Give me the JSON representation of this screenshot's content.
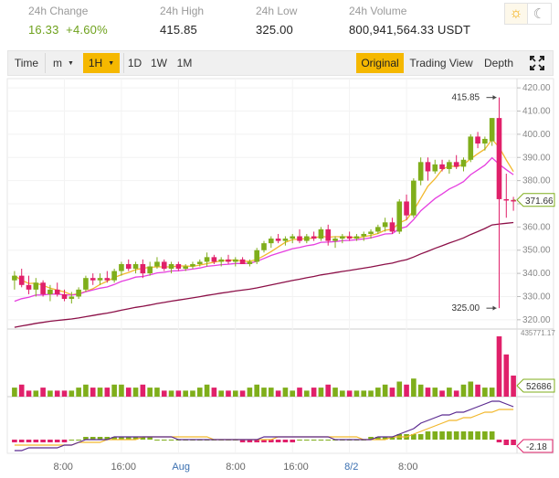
{
  "stats": [
    {
      "label": "24h Change",
      "values": [
        "16.33",
        "+4.60%"
      ],
      "color": "#6ea11c"
    },
    {
      "label": "24h High",
      "values": [
        "415.85"
      ]
    },
    {
      "label": "24h Low",
      "values": [
        "325.00"
      ]
    },
    {
      "label": "24h Volume",
      "values": [
        "800,941,564.33 USDT"
      ]
    }
  ],
  "theme": {
    "light_icon": "sun-icon",
    "dark_icon": "moon-icon"
  },
  "toolbar": {
    "time_label": "Time",
    "minute_label": "m",
    "hour_label": "1H",
    "day_label": "1D",
    "week_label": "1W",
    "month_label": "1M",
    "original_label": "Original",
    "tradingview_label": "Trading View",
    "depth_label": "Depth",
    "fullscreen_icon": "fullscreen-icon",
    "active_interval": "1H",
    "active_view": "Original",
    "accent": "#f5b800"
  },
  "chart_data": {
    "type": "candlestick",
    "interval": "1H",
    "x_tick_labels": [
      "8:00",
      "16:00",
      "Aug",
      "8:00",
      "16:00",
      "8/2",
      "8:00"
    ],
    "price_axis": {
      "ticks": [
        420,
        410,
        400,
        390,
        380,
        370,
        360,
        350,
        340,
        330,
        320
      ],
      "ylim": [
        316,
        424
      ],
      "tick_labels": [
        "420.00",
        "410.00",
        "400.00",
        "390.00",
        "380.00",
        "370.00",
        "360.00",
        "350.00",
        "340.00",
        "330.00",
        "320.00"
      ]
    },
    "last_price_label": "371.66",
    "high_marker": "415.85",
    "low_marker": "325.00",
    "volume_max_label": "435771.17",
    "volume_last_label": "52686",
    "indicator_last_label": "-2.18",
    "colors": {
      "up": "#7fae1b",
      "down": "#e0206a",
      "ma_fast": "#f2b82c",
      "ma_mid": "#e63fe0",
      "ma_slow": "#8c1048",
      "osc_line1": "#5b2a90",
      "osc_line2": "#f2b82c"
    },
    "candles": [
      {
        "o": 337,
        "h": 341,
        "l": 333,
        "c": 339
      },
      {
        "o": 339,
        "h": 342,
        "l": 334,
        "c": 335
      },
      {
        "o": 335,
        "h": 339,
        "l": 331,
        "c": 333
      },
      {
        "o": 333,
        "h": 338,
        "l": 330,
        "c": 336
      },
      {
        "o": 336,
        "h": 337,
        "l": 330,
        "c": 331
      },
      {
        "o": 331,
        "h": 335,
        "l": 328,
        "c": 333
      },
      {
        "o": 333,
        "h": 336,
        "l": 330,
        "c": 331
      },
      {
        "o": 331,
        "h": 333,
        "l": 328,
        "c": 329
      },
      {
        "o": 329,
        "h": 332,
        "l": 327,
        "c": 330
      },
      {
        "o": 330,
        "h": 334,
        "l": 329,
        "c": 333
      },
      {
        "o": 333,
        "h": 339,
        "l": 332,
        "c": 338
      },
      {
        "o": 338,
        "h": 340,
        "l": 335,
        "c": 337
      },
      {
        "o": 337,
        "h": 340,
        "l": 335,
        "c": 338
      },
      {
        "o": 338,
        "h": 341,
        "l": 336,
        "c": 337
      },
      {
        "o": 337,
        "h": 342,
        "l": 336,
        "c": 341
      },
      {
        "o": 341,
        "h": 345,
        "l": 339,
        "c": 344
      },
      {
        "o": 344,
        "h": 346,
        "l": 341,
        "c": 342
      },
      {
        "o": 342,
        "h": 345,
        "l": 340,
        "c": 344
      },
      {
        "o": 344,
        "h": 346,
        "l": 338,
        "c": 340
      },
      {
        "o": 340,
        "h": 345,
        "l": 339,
        "c": 343
      },
      {
        "o": 343,
        "h": 347,
        "l": 342,
        "c": 345
      },
      {
        "o": 345,
        "h": 346,
        "l": 341,
        "c": 342
      },
      {
        "o": 342,
        "h": 345,
        "l": 340,
        "c": 344
      },
      {
        "o": 344,
        "h": 345,
        "l": 341,
        "c": 342
      },
      {
        "o": 342,
        "h": 344,
        "l": 341,
        "c": 343
      },
      {
        "o": 343,
        "h": 345,
        "l": 342,
        "c": 344
      },
      {
        "o": 344,
        "h": 346,
        "l": 343,
        "c": 345
      },
      {
        "o": 345,
        "h": 349,
        "l": 343,
        "c": 347
      },
      {
        "o": 347,
        "h": 348,
        "l": 344,
        "c": 345
      },
      {
        "o": 345,
        "h": 347,
        "l": 343,
        "c": 346
      },
      {
        "o": 346,
        "h": 348,
        "l": 344,
        "c": 345
      },
      {
        "o": 345,
        "h": 347,
        "l": 343,
        "c": 346
      },
      {
        "o": 346,
        "h": 347,
        "l": 344,
        "c": 344
      },
      {
        "o": 344,
        "h": 346,
        "l": 343,
        "c": 345
      },
      {
        "o": 345,
        "h": 351,
        "l": 344,
        "c": 350
      },
      {
        "o": 350,
        "h": 354,
        "l": 349,
        "c": 353
      },
      {
        "o": 353,
        "h": 356,
        "l": 351,
        "c": 355
      },
      {
        "o": 355,
        "h": 357,
        "l": 353,
        "c": 354
      },
      {
        "o": 354,
        "h": 356,
        "l": 352,
        "c": 355
      },
      {
        "o": 355,
        "h": 357,
        "l": 353,
        "c": 356
      },
      {
        "o": 356,
        "h": 359,
        "l": 353,
        "c": 354
      },
      {
        "o": 354,
        "h": 357,
        "l": 353,
        "c": 356
      },
      {
        "o": 356,
        "h": 358,
        "l": 354,
        "c": 355
      },
      {
        "o": 355,
        "h": 360,
        "l": 354,
        "c": 359
      },
      {
        "o": 359,
        "h": 361,
        "l": 352,
        "c": 354
      },
      {
        "o": 354,
        "h": 356,
        "l": 351,
        "c": 355
      },
      {
        "o": 355,
        "h": 357,
        "l": 353,
        "c": 356
      },
      {
        "o": 356,
        "h": 358,
        "l": 354,
        "c": 355
      },
      {
        "o": 355,
        "h": 357,
        "l": 354,
        "c": 356
      },
      {
        "o": 356,
        "h": 358,
        "l": 354,
        "c": 357
      },
      {
        "o": 357,
        "h": 359,
        "l": 355,
        "c": 358
      },
      {
        "o": 358,
        "h": 361,
        "l": 357,
        "c": 360
      },
      {
        "o": 360,
        "h": 364,
        "l": 358,
        "c": 362
      },
      {
        "o": 362,
        "h": 364,
        "l": 357,
        "c": 358
      },
      {
        "o": 358,
        "h": 372,
        "l": 357,
        "c": 371
      },
      {
        "o": 371,
        "h": 374,
        "l": 363,
        "c": 365
      },
      {
        "o": 365,
        "h": 381,
        "l": 364,
        "c": 380
      },
      {
        "o": 380,
        "h": 390,
        "l": 378,
        "c": 388
      },
      {
        "o": 388,
        "h": 390,
        "l": 380,
        "c": 384
      },
      {
        "o": 384,
        "h": 389,
        "l": 383,
        "c": 387
      },
      {
        "o": 387,
        "h": 389,
        "l": 384,
        "c": 385
      },
      {
        "o": 385,
        "h": 389,
        "l": 383,
        "c": 388
      },
      {
        "o": 388,
        "h": 391,
        "l": 385,
        "c": 386
      },
      {
        "o": 386,
        "h": 390,
        "l": 384,
        "c": 389
      },
      {
        "o": 389,
        "h": 400,
        "l": 388,
        "c": 399
      },
      {
        "o": 399,
        "h": 401,
        "l": 394,
        "c": 396
      },
      {
        "o": 396,
        "h": 399,
        "l": 393,
        "c": 398
      },
      {
        "o": 397,
        "h": 407,
        "l": 395,
        "c": 407
      },
      {
        "o": 407,
        "h": 415.85,
        "l": 325,
        "c": 372
      },
      {
        "o": 372,
        "h": 383,
        "l": 364,
        "c": 371.66
      },
      {
        "o": 371.66,
        "h": 373,
        "l": 367,
        "c": 371
      }
    ],
    "volume": [
      3,
      4,
      2,
      2,
      3,
      2,
      2,
      2,
      2,
      3,
      4,
      3,
      3,
      3,
      4,
      4,
      3,
      3,
      4,
      3,
      3,
      2,
      2,
      2,
      2,
      2,
      3,
      4,
      3,
      2,
      2,
      2,
      2,
      3,
      4,
      3,
      3,
      2,
      3,
      2,
      3,
      2,
      3,
      3,
      4,
      3,
      2,
      2,
      2,
      2,
      2,
      3,
      4,
      3,
      5,
      4,
      6,
      4,
      3,
      3,
      2,
      3,
      2,
      4,
      5,
      4,
      3,
      3,
      20,
      14,
      7
    ],
    "oscillator": {
      "line1": [
        -4,
        -4,
        -3,
        -3,
        -3,
        -3,
        -3,
        -2,
        -2,
        -1,
        0,
        0,
        0,
        0,
        1,
        1,
        1,
        1,
        1,
        1,
        1,
        1,
        1,
        0,
        0,
        0,
        0,
        0,
        0,
        0,
        0,
        0,
        0,
        0,
        0,
        1,
        1,
        1,
        1,
        1,
        1,
        1,
        1,
        1,
        1,
        0,
        0,
        0,
        0,
        0,
        0,
        1,
        1,
        1,
        2,
        3,
        4,
        6,
        7,
        8,
        9,
        9,
        10,
        10,
        11,
        12,
        13,
        14,
        14,
        13,
        12
      ],
      "line2": [
        -2,
        -2,
        -2,
        -2,
        -2,
        -2,
        -2,
        -2,
        -2,
        -1,
        -1,
        -1,
        -1,
        0,
        0,
        0,
        0,
        0,
        1,
        1,
        1,
        1,
        1,
        1,
        1,
        1,
        1,
        1,
        0,
        0,
        0,
        0,
        0,
        0,
        0,
        0,
        0,
        1,
        1,
        1,
        1,
        1,
        1,
        1,
        1,
        1,
        1,
        1,
        1,
        0,
        0,
        0,
        0,
        1,
        1,
        1,
        2,
        3,
        4,
        5,
        6,
        7,
        7,
        8,
        8,
        9,
        10,
        10,
        11,
        11,
        11
      ],
      "bars": [
        -1,
        -1,
        -1,
        -1,
        -1,
        -1,
        -1,
        -1,
        0,
        0,
        1,
        1,
        1,
        1,
        1,
        1,
        1,
        1,
        1,
        1,
        0,
        0,
        0,
        0,
        0,
        0,
        0,
        0,
        0,
        0,
        0,
        0,
        -1,
        -1,
        -1,
        -1,
        -1,
        -1,
        -1,
        -1,
        0,
        0,
        0,
        0,
        0,
        0,
        0,
        0,
        0,
        0,
        1,
        1,
        1,
        1,
        2,
        2,
        2,
        2,
        3,
        3,
        3,
        3,
        3,
        3,
        3,
        3,
        3,
        3,
        -1,
        -2,
        -2
      ]
    }
  }
}
